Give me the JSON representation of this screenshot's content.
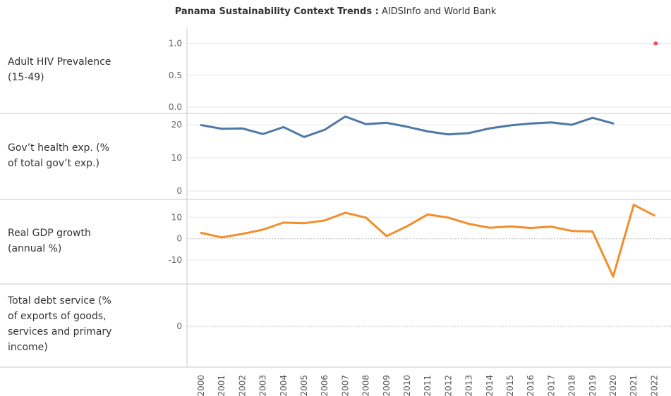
{
  "title": {
    "bold": "Panama Sustainability Context Trends :",
    "rest": " AIDSInfo and World Bank"
  },
  "colors": {
    "hiv": "#e15759",
    "health": "#4e79a7",
    "gdp": "#f28e2b",
    "grid": "#e6e6e6",
    "divider": "#c8c8c8",
    "zero": "#bdbdbd"
  },
  "chart_data": [
    {
      "type": "scatter",
      "ylabel": "Adult HIV Prevalence (15-49)",
      "yticks": [
        "1.0",
        "0.5",
        "0.0"
      ],
      "ylim": [
        0,
        1.15
      ],
      "series": [
        {
          "x": [
            "2022"
          ],
          "values": [
            1.0
          ]
        }
      ]
    },
    {
      "type": "line",
      "ylabel": "Gov’t health exp. (% of total gov’t exp.)",
      "yticks": [
        "20",
        "10",
        "0"
      ],
      "ylim": [
        0,
        23
      ],
      "series": [
        {
          "x": [
            "2000",
            "2001",
            "2002",
            "2003",
            "2004",
            "2005",
            "2006",
            "2007",
            "2008",
            "2009",
            "2010",
            "2011",
            "2012",
            "2013",
            "2014",
            "2015",
            "2016",
            "2017",
            "2018",
            "2019",
            "2020"
          ],
          "values": [
            19.9,
            18.8,
            18.9,
            17.2,
            19.3,
            16.3,
            18.5,
            22.5,
            20.2,
            20.6,
            19.4,
            18.0,
            17.1,
            17.5,
            18.9,
            19.8,
            20.4,
            20.7,
            20.0,
            22.1,
            20.4
          ]
        }
      ]
    },
    {
      "type": "line",
      "ylabel": "Real GDP growth (annual %)",
      "yticks": [
        "10",
        "0",
        "-10"
      ],
      "ylim": [
        -19.5,
        17
      ],
      "series": [
        {
          "x": [
            "2000",
            "2001",
            "2002",
            "2003",
            "2004",
            "2005",
            "2006",
            "2007",
            "2008",
            "2009",
            "2010",
            "2011",
            "2012",
            "2013",
            "2014",
            "2015",
            "2016",
            "2017",
            "2018",
            "2019",
            "2020",
            "2021",
            "2022"
          ],
          "values": [
            2.7,
            0.6,
            2.2,
            4.2,
            7.5,
            7.2,
            8.5,
            12.1,
            9.8,
            1.2,
            5.8,
            11.3,
            9.8,
            6.9,
            5.1,
            5.7,
            5.0,
            5.6,
            3.6,
            3.3,
            -17.7,
            15.8,
            10.8
          ]
        }
      ]
    },
    {
      "type": "line",
      "ylabel": "Total debt service (% of exports of goods, services and primary income)",
      "yticks": [
        "0"
      ],
      "ylim": [
        -1,
        1
      ],
      "series": []
    }
  ],
  "row_labels": [
    [
      "Adult HIV Prevalence",
      "(15-49)"
    ],
    [
      "Gov’t health exp. (%",
      "of total gov’t exp.)"
    ],
    [
      "Real GDP growth",
      "(annual %)"
    ],
    [
      "Total debt service (%",
      "of exports of goods,",
      "services and primary",
      "income)"
    ]
  ],
  "x_years": [
    "2000",
    "2001",
    "2002",
    "2003",
    "2004",
    "2005",
    "2006",
    "2007",
    "2008",
    "2009",
    "2010",
    "2011",
    "2012",
    "2013",
    "2014",
    "2015",
    "2016",
    "2017",
    "2018",
    "2019",
    "2020",
    "2021",
    "2022"
  ]
}
